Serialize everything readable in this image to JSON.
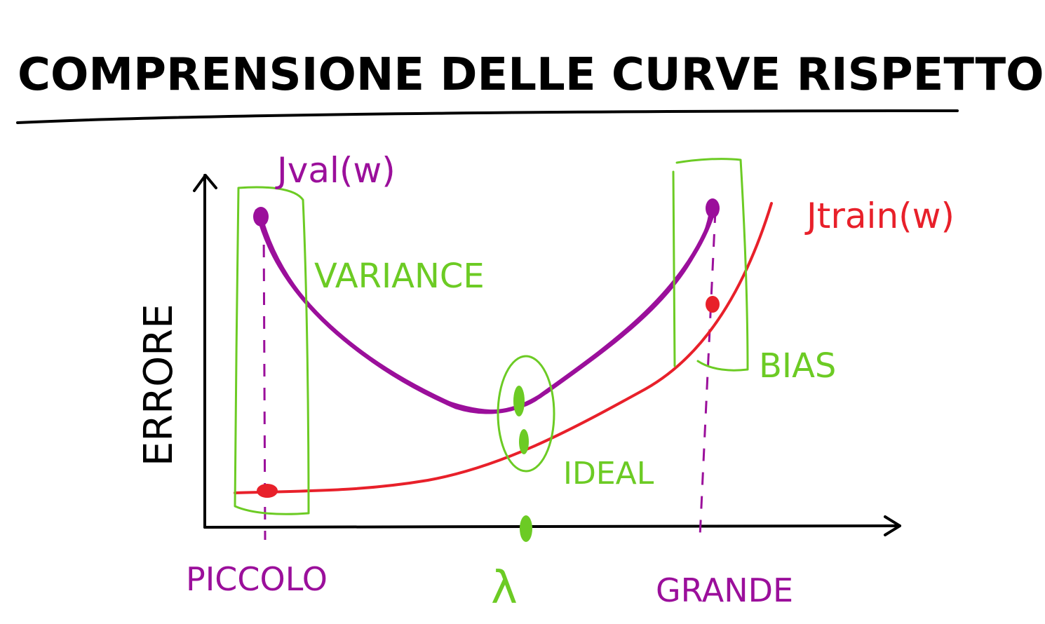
{
  "title": "COMPRENSIONE DELLE CURVE RISPETTO A λ",
  "y_axis_label": "ERRORE",
  "x_labels": {
    "small": "PICCOLO",
    "lambda": "λ",
    "large": "GRANDE"
  },
  "curves": {
    "val_label": "Jval(w)",
    "train_label": "Jtrain(w)"
  },
  "annotations": {
    "variance": "VARIANCE",
    "bias": "BIAS",
    "ideal": "IDEAL"
  },
  "colors": {
    "ink": "#000000",
    "val": "#9b0f9b",
    "train": "#e8202a",
    "annotation": "#6ccb24"
  }
}
